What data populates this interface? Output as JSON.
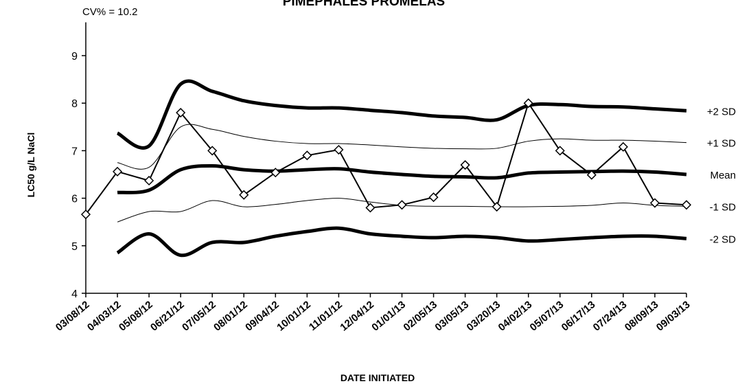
{
  "chart_data": {
    "type": "line",
    "title": "PIMEPHALES PROMELAS",
    "annotation": "CV% = 10.2",
    "x_label": "DATE INITIATED",
    "y_label": "LC50 g/L NaCl",
    "categories": [
      "03/08/12",
      "04/03/12",
      "05/08/12",
      "06/21/12",
      "07/05/12",
      "08/01/12",
      "09/04/12",
      "10/01/12",
      "11/01/12",
      "12/04/12",
      "01/01/13",
      "02/05/13",
      "03/05/13",
      "03/20/13",
      "04/02/13",
      "05/07/13",
      "06/17/13",
      "07/24/13",
      "08/09/13",
      "09/03/13"
    ],
    "ylim": [
      4,
      9.7
    ],
    "yticks": [
      4,
      5,
      6,
      7,
      8,
      9
    ],
    "grid": false,
    "series": [
      {
        "color": "#000000",
        "markers": true,
        "values": [
          5.66,
          6.56,
          6.37,
          7.8,
          7.0,
          6.07,
          6.54,
          6.9,
          7.02,
          5.8,
          5.86,
          6.02,
          6.7,
          5.82,
          8.0,
          7.0,
          6.49,
          7.08,
          5.9,
          5.86
        ]
      },
      {
        "name": "+2 SD",
        "color": "#000000",
        "values": [
          null,
          7.37,
          7.1,
          8.4,
          8.25,
          8.05,
          7.95,
          7.9,
          7.9,
          7.85,
          7.8,
          7.73,
          7.7,
          7.65,
          7.95,
          7.97,
          7.93,
          7.92,
          7.88,
          7.84
        ]
      },
      {
        "name": "+1 SD",
        "color": "#000000",
        "values": [
          null,
          6.75,
          6.65,
          7.5,
          7.45,
          7.3,
          7.2,
          7.15,
          7.15,
          7.12,
          7.08,
          7.05,
          7.04,
          7.05,
          7.2,
          7.25,
          7.22,
          7.22,
          7.2,
          7.17
        ]
      },
      {
        "name": "Mean",
        "color": "#000000",
        "values": [
          null,
          6.12,
          6.17,
          6.6,
          6.68,
          6.6,
          6.57,
          6.6,
          6.62,
          6.55,
          6.5,
          6.46,
          6.45,
          6.43,
          6.53,
          6.55,
          6.56,
          6.57,
          6.55,
          6.5
        ]
      },
      {
        "name": "-1 SD",
        "color": "#000000",
        "values": [
          null,
          5.5,
          5.72,
          5.72,
          5.95,
          5.82,
          5.87,
          5.95,
          6.0,
          5.92,
          5.85,
          5.83,
          5.83,
          5.82,
          5.82,
          5.83,
          5.85,
          5.9,
          5.85,
          5.83
        ]
      },
      {
        "name": "-2 SD",
        "color": "#000000",
        "values": [
          null,
          4.85,
          5.25,
          4.8,
          5.07,
          5.07,
          5.2,
          5.3,
          5.37,
          5.25,
          5.2,
          5.17,
          5.2,
          5.17,
          5.1,
          5.13,
          5.17,
          5.2,
          5.2,
          5.15
        ]
      }
    ]
  }
}
